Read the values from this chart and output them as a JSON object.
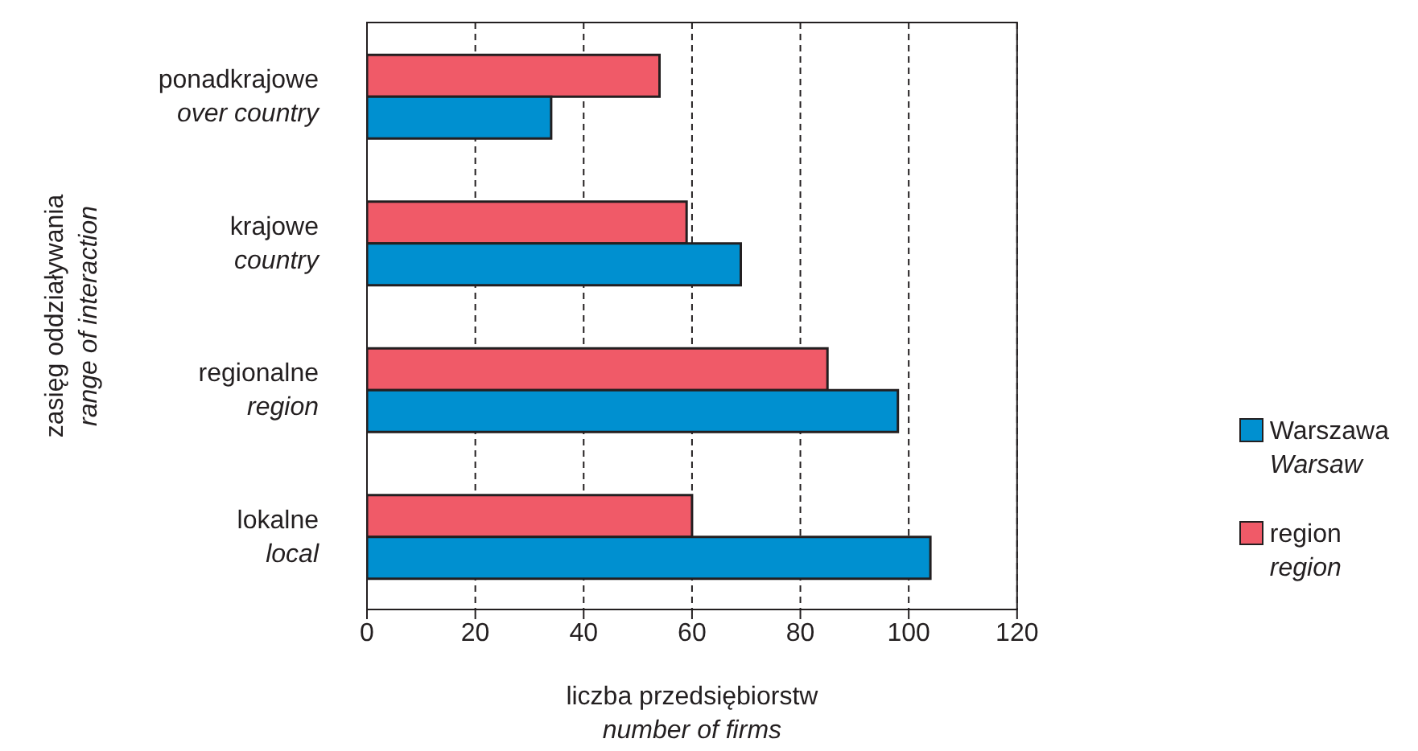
{
  "chart_data": {
    "type": "bar",
    "orientation": "horizontal",
    "xlabel": "liczba przedsiębiorstw\nnumber of firms",
    "ylabel": "zasięg oddziaływania\nrange of interaction",
    "categories": [
      "ponadkrajowe\nover country",
      "krajowe\ncountry",
      "regionalne\nregion",
      "lokalne\nlocal"
    ],
    "series": [
      {
        "name": "Warszawa\nWarsaw",
        "color": "#0090d0",
        "values": [
          34,
          69,
          98,
          104
        ]
      },
      {
        "name": "region\nregion",
        "color": "#f05a68",
        "values": [
          54,
          59,
          85,
          60
        ]
      }
    ],
    "xlim": [
      0,
      120
    ],
    "xticks": [
      0,
      20,
      40,
      60,
      80,
      100,
      120
    ],
    "grid": "x",
    "legend": "right"
  }
}
